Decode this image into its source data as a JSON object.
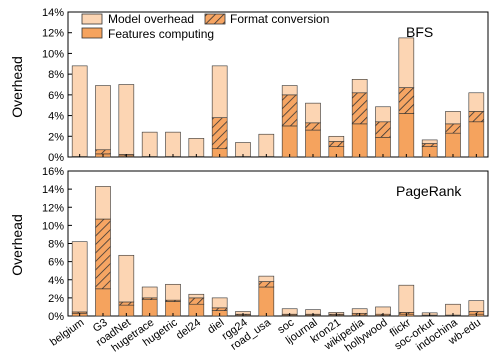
{
  "colors": {
    "model_overhead": "#fcd5b3",
    "format_conversion_bg": "#f6a563",
    "format_conversion_hatch": "#333333",
    "features_computing": "#f5a35e",
    "axis": "#000000",
    "bar_edge": "#333333"
  },
  "chart_data": {
    "type": "bar",
    "stacked": true,
    "legend": {
      "placement": "top-left",
      "entries": [
        "Model overhead",
        "Format conversion",
        "Features computing"
      ]
    },
    "categories": [
      "belgium",
      "G3",
      "roadNet",
      "hugetrace",
      "hugetric",
      "del24",
      "diel",
      "rgg24",
      "road_usa",
      "soc",
      "ljournal",
      "kron21",
      "wikipedia",
      "hollywood",
      "flickr",
      "soc-orkut",
      "indochina",
      "wb-edu"
    ],
    "panels": [
      {
        "title": "BFS",
        "ylabel": "Overhead",
        "ylim": [
          0,
          14
        ],
        "yticks": [
          "0%",
          "2%",
          "4%",
          "6%",
          "8%",
          "10%",
          "12%",
          "14%"
        ],
        "series": [
          {
            "name": "Features computing",
            "values": [
              0.05,
              0.3,
              0.1,
              0.05,
              0.05,
              0.05,
              0.8,
              0.05,
              0.05,
              3.0,
              2.6,
              1.0,
              3.2,
              1.9,
              4.2,
              1.0,
              2.3,
              3.4
            ]
          },
          {
            "name": "Format conversion",
            "values": [
              0.0,
              0.4,
              0.15,
              0.0,
              0.0,
              0.0,
              3.0,
              0.0,
              0.0,
              3.0,
              0.7,
              0.5,
              3.0,
              1.5,
              2.5,
              0.3,
              0.9,
              1.0
            ]
          },
          {
            "name": "Model overhead",
            "values": [
              8.75,
              6.2,
              6.75,
              2.35,
              2.35,
              1.75,
              5.0,
              1.35,
              2.15,
              0.9,
              1.9,
              0.5,
              1.3,
              1.45,
              4.8,
              0.35,
              1.2,
              1.8
            ]
          }
        ]
      },
      {
        "title": "PageRank",
        "ylabel": "Overhead",
        "ylim": [
          0,
          16
        ],
        "yticks": [
          "0%",
          "2%",
          "4%",
          "6%",
          "8%",
          "10%",
          "12%",
          "14%",
          "16%"
        ],
        "series": [
          {
            "name": "Features computing",
            "values": [
              0.3,
              3.0,
              1.2,
              1.8,
              1.6,
              1.3,
              0.6,
              0.1,
              3.2,
              0.1,
              0.1,
              0.1,
              0.1,
              0.05,
              0.2,
              0.05,
              0.05,
              0.2
            ]
          },
          {
            "name": "Format conversion",
            "values": [
              0.15,
              7.7,
              0.35,
              0.2,
              0.15,
              0.7,
              0.3,
              0.1,
              0.6,
              0.1,
              0.1,
              0.1,
              0.2,
              0.15,
              0.2,
              0.05,
              0.05,
              0.3
            ]
          },
          {
            "name": "Model overhead",
            "values": [
              7.75,
              3.6,
              5.15,
              1.2,
              1.75,
              0.4,
              1.1,
              0.3,
              0.6,
              0.6,
              0.5,
              0.2,
              0.5,
              0.8,
              3.0,
              0.25,
              1.2,
              1.2
            ]
          }
        ]
      }
    ]
  }
}
